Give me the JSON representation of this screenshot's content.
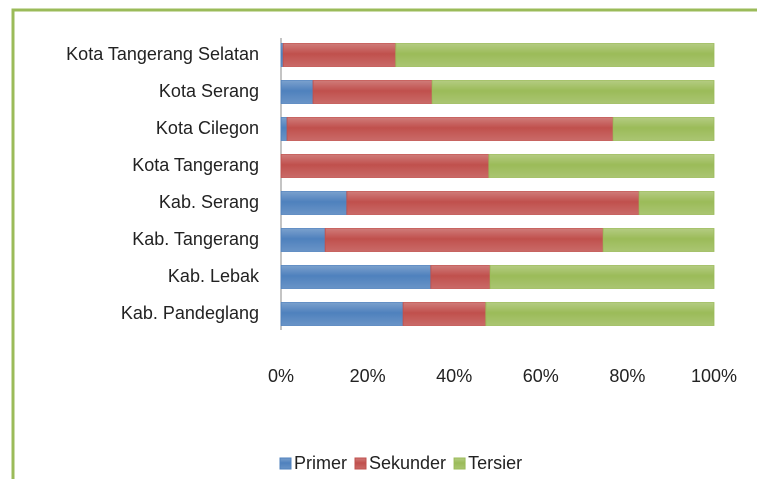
{
  "chart_data": {
    "type": "bar",
    "orientation": "horizontal",
    "stacked": true,
    "categories": [
      "Kota Tangerang Selatan",
      "Kota Serang",
      "Kota Cilegon",
      "Kota Tangerang",
      "Kab. Serang",
      "Kab. Tangerang",
      "Kab. Lebak",
      "Kab. Pandeglang"
    ],
    "series": [
      {
        "name": "Primer",
        "color": "#4f81bd",
        "values": [
          0.5,
          7.4,
          1.4,
          0,
          15.2,
          10.2,
          34.6,
          28.2
        ]
      },
      {
        "name": "Sekunder",
        "color": "#c0504d",
        "values": [
          26,
          27.5,
          75.3,
          48,
          67.5,
          64.2,
          13.7,
          19.1
        ]
      },
      {
        "name": "Tersier",
        "color": "#9bbb59",
        "values": [
          73.5,
          65.1,
          23.3,
          52,
          17.3,
          25.6,
          51.7,
          52.7
        ]
      }
    ],
    "xlim": [
      0,
      100
    ],
    "xticks": [
      {
        "value": 0,
        "label": "0%"
      },
      {
        "value": 20,
        "label": "20%"
      },
      {
        "value": 40,
        "label": "40%"
      },
      {
        "value": 60,
        "label": "60%"
      },
      {
        "value": 80,
        "label": "80%"
      },
      {
        "value": 100,
        "label": "100%"
      }
    ],
    "legend": "bottom"
  }
}
